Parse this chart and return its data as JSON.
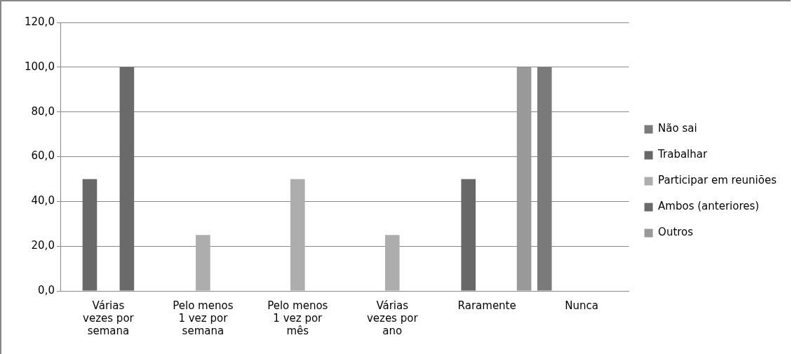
{
  "chart_data": {
    "type": "bar",
    "categories": [
      "Várias vezes por semana",
      "Pelo menos 1 vez por semana",
      "Pelo menos 1 vez por mês",
      "Várias vezes por ano",
      "Raramente",
      "Nunca"
    ],
    "series": [
      {
        "name": "Não sai",
        "color": "#7a7a7a",
        "values": [
          null,
          null,
          null,
          null,
          null,
          100
        ]
      },
      {
        "name": "Trabalhar",
        "color": "#686868",
        "values": [
          50,
          null,
          null,
          null,
          50,
          null
        ]
      },
      {
        "name": "Participar em reuniões",
        "color": "#adadad",
        "values": [
          null,
          25,
          50,
          25,
          null,
          null
        ]
      },
      {
        "name": "Ambos (anteriores)",
        "color": "#6a6a6a",
        "values": [
          100,
          null,
          null,
          null,
          null,
          null
        ]
      },
      {
        "name": "Outros",
        "color": "#999999",
        "values": [
          null,
          null,
          null,
          null,
          100,
          null
        ]
      }
    ],
    "ylim": [
      0,
      120
    ],
    "yticks": [
      {
        "value": 0,
        "label": "0,0"
      },
      {
        "value": 20,
        "label": "20,0"
      },
      {
        "value": 40,
        "label": "40,0"
      },
      {
        "value": 60,
        "label": "60,0"
      },
      {
        "value": 80,
        "label": "80,0"
      },
      {
        "value": 100,
        "label": "100,0"
      },
      {
        "value": 120,
        "label": "120,0"
      }
    ],
    "grid": "y",
    "legend": "right"
  }
}
